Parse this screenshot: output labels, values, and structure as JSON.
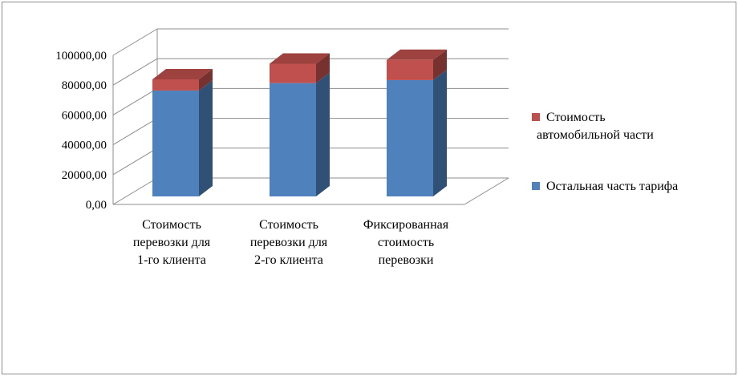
{
  "chart_data": {
    "type": "bar",
    "stacked": true,
    "style": "3d",
    "categories": [
      [
        "Стоимость",
        "перевозки для",
        "1-го клиента"
      ],
      [
        "Стоимость",
        "перевозки для",
        "2-го клиента"
      ],
      [
        "Фиксированная",
        "стоимость",
        "перевозки"
      ]
    ],
    "series": [
      {
        "name": "Остальная часть тарифа",
        "color": "#4F81BD",
        "values": [
          71000,
          76000,
          78000
        ]
      },
      {
        "name": [
          "Стоимость",
          "автомобильной части"
        ],
        "color": "#C0504D",
        "values": [
          7500,
          13000,
          13500
        ]
      }
    ],
    "yticks": [
      "0,00",
      "20000,00",
      "40000,00",
      "60000,00",
      "80000,00",
      "100000,00"
    ],
    "ylim": [
      0,
      100000
    ],
    "grid": true,
    "legend": "right"
  }
}
